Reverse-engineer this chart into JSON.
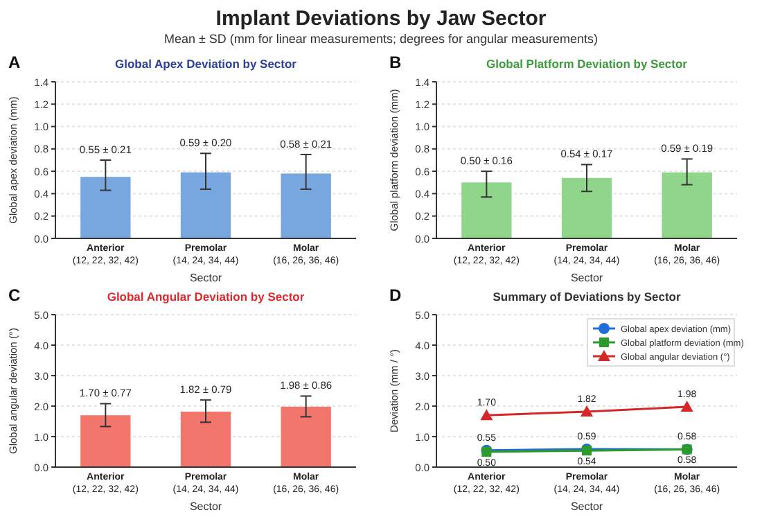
{
  "chart_data": [
    {
      "type": "other",
      "title": "Implant Deviations by Jaw Sector",
      "subtitle": "Mean ± SD (mm for linear measurements; degrees for angular measurements)"
    },
    {
      "type": "bar",
      "title": "Global Apex Deviation by Sector",
      "annotations": [
        "A"
      ],
      "xlabel": "Sector",
      "ylabel": "Global apex deviation (mm)",
      "categories": [
        "Anterior\n(12, 22, 32, 42)",
        "Premolar\n(14, 24, 34, 44)",
        "Molar\n(16, 26, 36, 46)"
      ],
      "values": [
        0.55,
        0.59,
        0.58
      ],
      "color": "#78a6de",
      "errors": [
        [
          0.43,
          0.7
        ],
        [
          0.44,
          0.76
        ],
        [
          0.44,
          0.75
        ]
      ],
      "value_labels": [
        "0.55 ± 0.21",
        "0.59 ± 0.20",
        "0.58 ± 0.21"
      ],
      "ylim": [
        0,
        1.4
      ],
      "yticks": [
        {
          "value": 0,
          "label": "0.0"
        },
        {
          "value": 0.2,
          "label": "0.2"
        },
        {
          "value": 0.4,
          "label": "0.4"
        },
        {
          "value": 0.6,
          "label": "0.6"
        },
        {
          "value": 0.8,
          "label": "0.8"
        },
        {
          "value": 1,
          "label": "1.0"
        },
        {
          "value": 1.2,
          "label": "1.2"
        },
        {
          "value": 1.4,
          "label": "1.4"
        }
      ],
      "grid": "y"
    },
    {
      "type": "bar",
      "title": "Global Platform Deviation by Sector",
      "annotations": [
        "B"
      ],
      "xlabel": "Sector",
      "ylabel": "Global platform deviation (mm)",
      "categories": [
        "Anterior\n(12, 22, 32, 42)",
        "Premolar\n(14, 24, 34, 44)",
        "Molar\n(16, 26, 36, 46)"
      ],
      "values": [
        0.5,
        0.54,
        0.59
      ],
      "color": "#90d68a",
      "errors": [
        [
          0.37,
          0.6
        ],
        [
          0.42,
          0.66
        ],
        [
          0.48,
          0.71
        ]
      ],
      "value_labels": [
        "0.50 ± 0.16",
        "0.54 ± 0.17",
        "0.59 ± 0.19"
      ],
      "ylim": [
        0,
        1.4
      ],
      "yticks": [
        {
          "value": 0,
          "label": "0.0"
        },
        {
          "value": 0.2,
          "label": "0.2"
        },
        {
          "value": 0.4,
          "label": "0.4"
        },
        {
          "value": 0.6,
          "label": "0.6"
        },
        {
          "value": 0.8,
          "label": "0.8"
        },
        {
          "value": 1,
          "label": "1.0"
        },
        {
          "value": 1.2,
          "label": "1.2"
        },
        {
          "value": 1.4,
          "label": "1.4"
        }
      ],
      "grid": "y"
    },
    {
      "type": "bar",
      "title": "Global Angular Deviation by Sector",
      "annotations": [
        "C"
      ],
      "xlabel": "Sector",
      "ylabel": "Global angular deviation (°)",
      "categories": [
        "Anterior\n(12, 22, 32, 42)",
        "Premolar\n(14, 24, 34, 44)",
        "Molar\n(16, 26, 36, 46)"
      ],
      "values": [
        1.7,
        1.82,
        1.98
      ],
      "color": "#f2766c",
      "errors": [
        [
          1.33,
          2.08
        ],
        [
          1.47,
          2.2
        ],
        [
          1.65,
          2.33
        ]
      ],
      "value_labels": [
        "1.70 ± 0.77",
        "1.82 ± 0.79",
        "1.98 ± 0.86"
      ],
      "ylim": [
        0,
        5
      ],
      "yticks": [
        {
          "value": 0,
          "label": "0.0"
        },
        {
          "value": 1,
          "label": "1.0"
        },
        {
          "value": 2,
          "label": "2.0"
        },
        {
          "value": 3,
          "label": "3.0"
        },
        {
          "value": 4,
          "label": "4.0"
        },
        {
          "value": 5,
          "label": "5.0"
        }
      ],
      "grid": "y"
    },
    {
      "type": "line",
      "title": "Summary of Deviations by Sector",
      "annotations": [
        "D"
      ],
      "xlabel": "Sector",
      "ylabel": "Deviation (mm / °)",
      "categories": [
        "Anterior\n(12, 22, 32, 42)",
        "Premolar\n(14, 24, 34, 44)",
        "Molar\n(16, 26, 36, 46)"
      ],
      "series": [
        {
          "name": "Global apex deviation (mm)",
          "color": "#1f6fd6",
          "values": [
            0.55,
            0.59,
            0.58
          ],
          "value_labels": [
            "0.55",
            "0.59",
            "0.58"
          ],
          "marker": "circle"
        },
        {
          "name": "Global platform deviation (mm)",
          "color": "#2a9a2a",
          "values": [
            0.5,
            0.54,
            0.58
          ],
          "value_labels": [
            "0.50",
            "0.54",
            "0.58"
          ],
          "marker": "square"
        },
        {
          "name": "Global angular deviation (°)",
          "color": "#d62728",
          "values": [
            1.7,
            1.82,
            1.98
          ],
          "value_labels": [
            "1.70",
            "1.82",
            "1.98"
          ],
          "marker": "triangle"
        }
      ],
      "legend": "top right",
      "ylim": [
        0,
        5
      ],
      "yticks": [
        {
          "value": 0,
          "label": "0.0"
        },
        {
          "value": 1,
          "label": "1.0"
        },
        {
          "value": 2,
          "label": "2.0"
        },
        {
          "value": 3,
          "label": "3.0"
        },
        {
          "value": 4,
          "label": "4.0"
        },
        {
          "value": 5,
          "label": "5.0"
        }
      ],
      "grid": "y"
    }
  ]
}
